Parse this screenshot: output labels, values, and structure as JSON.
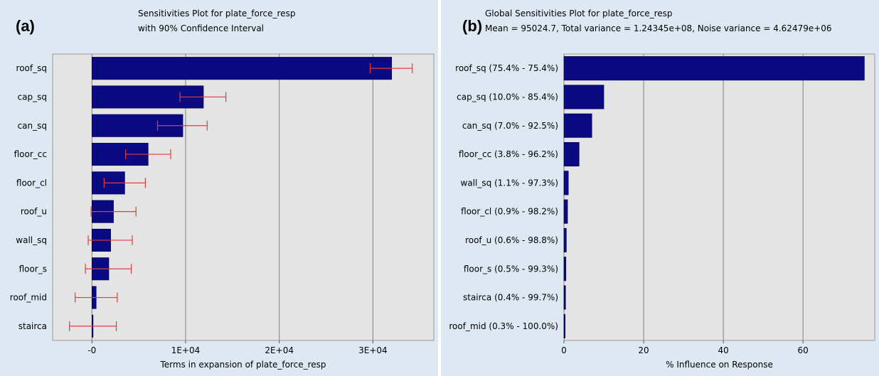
{
  "colors": {
    "bar": "#0a0a82",
    "error_bar": "#e23c3c",
    "plot_bg": "#e4e4e4",
    "panel_bg": "#dde8f3",
    "grid": "#808080"
  },
  "panel_a": {
    "tag": "(a)",
    "title_line1": "Sensitivities Plot for plate_force_resp",
    "title_line2": "with 90% Confidence Interval"
  },
  "panel_b": {
    "tag": "(b)",
    "title_line1": "Global Sensitivities Plot for plate_force_resp",
    "title_line2": "Mean = 95024.7, Total variance = 1.24345e+08, Noise variance = 4.62479e+06"
  },
  "chart_data": [
    {
      "type": "bar",
      "orientation": "horizontal",
      "title": "Sensitivities Plot for plate_force_resp with 90% Confidence Interval",
      "xlabel": "Terms in expansion of plate_force_resp",
      "categories": [
        "roof_sq",
        "cap_sq",
        "can_sq",
        "floor_cc",
        "floor_cl",
        "roof_u",
        "wall_sq",
        "floor_s",
        "roof_mid",
        "stairca"
      ],
      "values": [
        32000,
        11900,
        9700,
        6000,
        3500,
        2300,
        2000,
        1800,
        450,
        120
      ],
      "error_low": [
        29700,
        9400,
        7000,
        3600,
        1300,
        -100,
        -400,
        -700,
        -1800,
        -2400
      ],
      "error_high": [
        34200,
        14300,
        12300,
        8400,
        5700,
        4700,
        4300,
        4200,
        2700,
        2600
      ],
      "xlim": [
        -4200,
        36500
      ],
      "xticks": [
        0,
        10000,
        20000,
        30000
      ],
      "xtick_labels": [
        "-0",
        "1E+04",
        "2E+04",
        "3E+04"
      ],
      "grid": true
    },
    {
      "type": "bar",
      "orientation": "horizontal",
      "title": "Global Sensitivities Plot for plate_force_resp",
      "xlabel": "% Influence on Response",
      "categories": [
        "roof_sq (75.4% - 75.4%)",
        "cap_sq (10.0% - 85.4%)",
        "can_sq (7.0% - 92.5%)",
        "floor_cc (3.8% - 96.2%)",
        "wall_sq (1.1% - 97.3%)",
        "floor_cl (0.9% - 98.2%)",
        "roof_u (0.6% - 98.8%)",
        "floor_s (0.5% - 99.3%)",
        "stairca (0.4% - 99.7%)",
        "roof_mid (0.3% - 100.0%)"
      ],
      "values": [
        75.4,
        10.0,
        7.0,
        3.8,
        1.1,
        0.9,
        0.6,
        0.5,
        0.4,
        0.3
      ],
      "xlim": [
        0,
        78
      ],
      "xticks": [
        0,
        20,
        40,
        60
      ],
      "xtick_labels": [
        "0",
        "20",
        "40",
        "60"
      ],
      "grid": true
    }
  ]
}
